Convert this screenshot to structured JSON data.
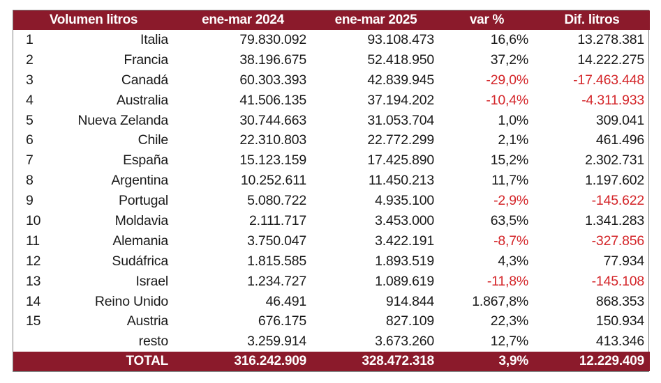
{
  "table": {
    "headers": {
      "volume": "Volumen litros",
      "y2024": "ene-mar 2024",
      "y2025": "ene-mar 2025",
      "var": "var %",
      "dif": "Dif. litros"
    },
    "rows": [
      {
        "rank": "1",
        "country": "Italia",
        "y2024": "79.830.092",
        "y2025": "93.108.473",
        "var": "16,6%",
        "dif": "13.278.381",
        "negative": false
      },
      {
        "rank": "2",
        "country": "Francia",
        "y2024": "38.196.675",
        "y2025": "52.418.950",
        "var": "37,2%",
        "dif": "14.222.275",
        "negative": false
      },
      {
        "rank": "3",
        "country": "Canadá",
        "y2024": "60.303.393",
        "y2025": "42.839.945",
        "var": "-29,0%",
        "dif": "-17.463.448",
        "negative": true
      },
      {
        "rank": "4",
        "country": "Australia",
        "y2024": "41.506.135",
        "y2025": "37.194.202",
        "var": "-10,4%",
        "dif": "-4.311.933",
        "negative": true
      },
      {
        "rank": "5",
        "country": "Nueva Zelanda",
        "y2024": "30.744.663",
        "y2025": "31.053.704",
        "var": "1,0%",
        "dif": "309.041",
        "negative": false
      },
      {
        "rank": "6",
        "country": "Chile",
        "y2024": "22.310.803",
        "y2025": "22.772.299",
        "var": "2,1%",
        "dif": "461.496",
        "negative": false
      },
      {
        "rank": "7",
        "country": "España",
        "y2024": "15.123.159",
        "y2025": "17.425.890",
        "var": "15,2%",
        "dif": "2.302.731",
        "negative": false
      },
      {
        "rank": "8",
        "country": "Argentina",
        "y2024": "10.252.611",
        "y2025": "11.450.213",
        "var": "11,7%",
        "dif": "1.197.602",
        "negative": false
      },
      {
        "rank": "9",
        "country": "Portugal",
        "y2024": "5.080.722",
        "y2025": "4.935.100",
        "var": "-2,9%",
        "dif": "-145.622",
        "negative": true
      },
      {
        "rank": "10",
        "country": "Moldavia",
        "y2024": "2.111.717",
        "y2025": "3.453.000",
        "var": "63,5%",
        "dif": "1.341.283",
        "negative": false
      },
      {
        "rank": "11",
        "country": "Alemania",
        "y2024": "3.750.047",
        "y2025": "3.422.191",
        "var": "-8,7%",
        "dif": "-327.856",
        "negative": true
      },
      {
        "rank": "12",
        "country": "Sudáfrica",
        "y2024": "1.815.585",
        "y2025": "1.893.519",
        "var": "4,3%",
        "dif": "77.934",
        "negative": false
      },
      {
        "rank": "13",
        "country": "Israel",
        "y2024": "1.234.727",
        "y2025": "1.089.619",
        "var": "-11,8%",
        "dif": "-145.108",
        "negative": true
      },
      {
        "rank": "14",
        "country": "Reino Unido",
        "y2024": "46.491",
        "y2025": "914.844",
        "var": "1.867,8%",
        "dif": "868.353",
        "negative": false
      },
      {
        "rank": "15",
        "country": "Austria",
        "y2024": "676.175",
        "y2025": "827.109",
        "var": "22,3%",
        "dif": "150.934",
        "negative": false
      },
      {
        "rank": "",
        "country": "resto",
        "y2024": "3.259.914",
        "y2025": "3.673.260",
        "var": "12,7%",
        "dif": "413.346",
        "negative": false
      }
    ],
    "total": {
      "label": "TOTAL",
      "y2024": "316.242.909",
      "y2025": "328.472.318",
      "var": "3,9%",
      "dif": "12.229.409"
    }
  },
  "colors": {
    "header_bg": "#8b1a2b",
    "negative": "#d4262a"
  }
}
